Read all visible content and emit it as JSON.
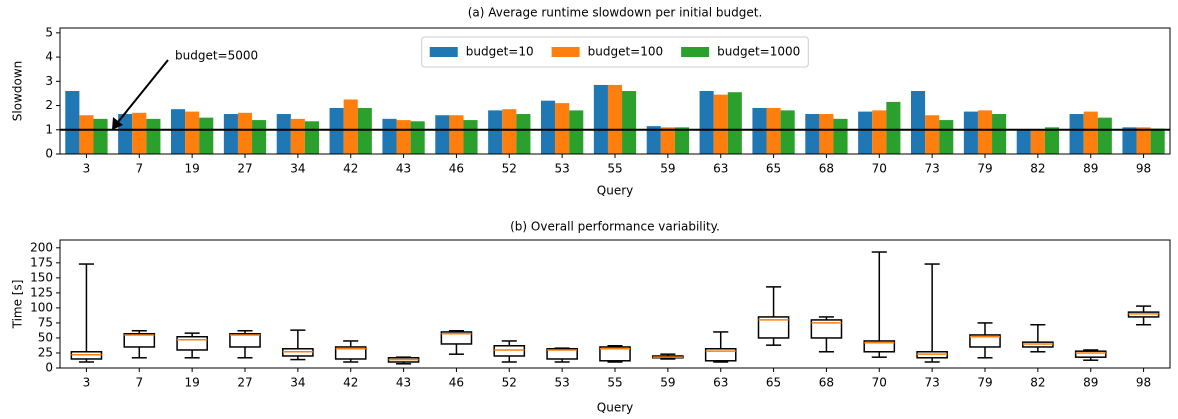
{
  "chart_data": [
    {
      "type": "bar",
      "title": "(a) Average runtime slowdown per initial budget.",
      "xlabel": "Query",
      "ylabel": "Slowdown",
      "categories": [
        "3",
        "7",
        "19",
        "27",
        "34",
        "42",
        "43",
        "46",
        "52",
        "53",
        "55",
        "59",
        "63",
        "65",
        "68",
        "70",
        "73",
        "79",
        "82",
        "89",
        "98"
      ],
      "series": [
        {
          "name": "budget=10",
          "color": "#1f77b4",
          "values": [
            2.6,
            1.65,
            1.85,
            1.65,
            1.65,
            1.9,
            1.45,
            1.6,
            1.8,
            2.2,
            2.85,
            1.15,
            2.6,
            1.9,
            1.65,
            1.75,
            2.6,
            1.75,
            1.0,
            1.65,
            1.1
          ]
        },
        {
          "name": "budget=100",
          "color": "#ff7f0e",
          "values": [
            1.6,
            1.7,
            1.75,
            1.7,
            1.45,
            2.25,
            1.4,
            1.6,
            1.85,
            2.1,
            2.85,
            1.1,
            2.45,
            1.9,
            1.65,
            1.8,
            1.6,
            1.8,
            1.0,
            1.75,
            1.1
          ]
        },
        {
          "name": "budget=1000",
          "color": "#2ca02c",
          "values": [
            1.45,
            1.45,
            1.5,
            1.4,
            1.35,
            1.9,
            1.35,
            1.4,
            1.65,
            1.8,
            2.6,
            1.1,
            2.55,
            1.8,
            1.45,
            2.15,
            1.4,
            1.65,
            1.1,
            1.5,
            1.05
          ]
        }
      ],
      "hline": 1,
      "annotation": "budget=5000",
      "legend": "upper center",
      "ylim": [
        0,
        5.2
      ],
      "yticks": [
        0,
        1,
        2,
        3,
        4,
        5
      ]
    },
    {
      "type": "box",
      "title": "(b) Overall performance variability.",
      "xlabel": "Query",
      "ylabel": "Time [s]",
      "categories": [
        "3",
        "7",
        "19",
        "27",
        "34",
        "42",
        "43",
        "46",
        "52",
        "53",
        "55",
        "59",
        "63",
        "65",
        "68",
        "70",
        "73",
        "79",
        "82",
        "89",
        "98"
      ],
      "box_color": "#000000",
      "median_color": "#ff7f0e",
      "boxes": [
        {
          "low": 10,
          "q1": 15,
          "median": 22,
          "q3": 27,
          "high": 173
        },
        {
          "low": 17,
          "q1": 35,
          "median": 55,
          "q3": 57,
          "high": 62
        },
        {
          "low": 17,
          "q1": 30,
          "median": 47,
          "q3": 52,
          "high": 58
        },
        {
          "low": 17,
          "q1": 35,
          "median": 55,
          "q3": 57,
          "high": 62
        },
        {
          "low": 14,
          "q1": 20,
          "median": 27,
          "q3": 32,
          "high": 63
        },
        {
          "low": 10,
          "q1": 15,
          "median": 32,
          "q3": 35,
          "high": 45
        },
        {
          "low": 7,
          "q1": 10,
          "median": 14,
          "q3": 17,
          "high": 18
        },
        {
          "low": 23,
          "q1": 40,
          "median": 57,
          "q3": 60,
          "high": 62
        },
        {
          "low": 10,
          "q1": 20,
          "median": 30,
          "q3": 37,
          "high": 45
        },
        {
          "low": 10,
          "q1": 15,
          "median": 30,
          "q3": 32,
          "high": 33
        },
        {
          "low": 10,
          "q1": 12,
          "median": 32,
          "q3": 35,
          "high": 37
        },
        {
          "low": 15,
          "q1": 17,
          "median": 18,
          "q3": 20,
          "high": 23
        },
        {
          "low": 10,
          "q1": 12,
          "median": 28,
          "q3": 32,
          "high": 60
        },
        {
          "low": 38,
          "q1": 50,
          "median": 80,
          "q3": 85,
          "high": 135
        },
        {
          "low": 27,
          "q1": 50,
          "median": 75,
          "q3": 80,
          "high": 85
        },
        {
          "low": 18,
          "q1": 27,
          "median": 42,
          "q3": 45,
          "high": 193
        },
        {
          "low": 10,
          "q1": 17,
          "median": 23,
          "q3": 27,
          "high": 173
        },
        {
          "low": 17,
          "q1": 35,
          "median": 52,
          "q3": 55,
          "high": 75
        },
        {
          "low": 27,
          "q1": 35,
          "median": 40,
          "q3": 43,
          "high": 72
        },
        {
          "low": 13,
          "q1": 18,
          "median": 25,
          "q3": 28,
          "high": 30
        },
        {
          "low": 72,
          "q1": 85,
          "median": 90,
          "q3": 93,
          "high": 103
        }
      ],
      "ylim": [
        0,
        213
      ],
      "yticks": [
        0,
        25,
        50,
        75,
        100,
        125,
        150,
        175,
        200
      ]
    }
  ]
}
